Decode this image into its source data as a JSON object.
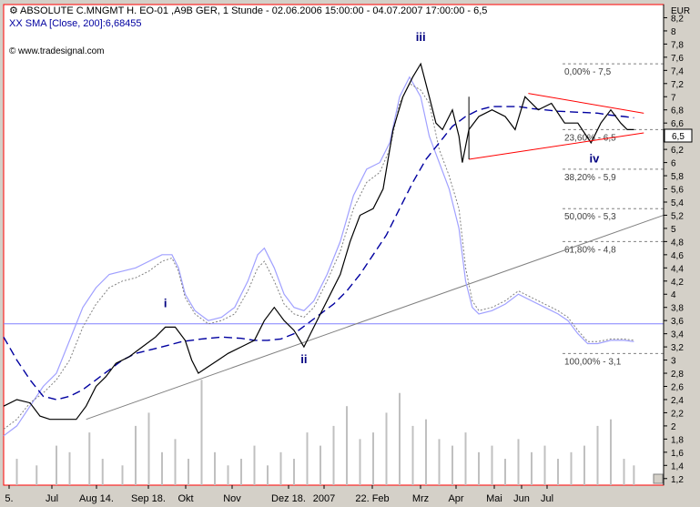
{
  "header": {
    "title": "ABSOLUTE C.MNGMT H. EO-01 ,A9B GER, 1 Stunde - 02.06.2006 15:00:00 - 04.07.2007 17:00:00 - 6,5",
    "sma_label": "XX SMA [Close, 200]:6,68455",
    "watermark": "www.tradesignal.com",
    "currency": "EUR",
    "last_price_tag": "6,5"
  },
  "colors": {
    "background": "#ffffff",
    "frame": "#ff0000",
    "price": "#000000",
    "sma": "#0000a0",
    "envelope": "#a0a0ff",
    "dotted": "#808080",
    "triangle": "#ff0000",
    "trendline": "#808080",
    "hline": "#8080ff",
    "fib": "#808080",
    "wave_label": "#000080",
    "volume": "#c0c0c0"
  },
  "chart_data": {
    "type": "line",
    "y_axis": {
      "min": 1.1,
      "max": 8.4,
      "ticks": [
        "8,2",
        "8",
        "7,8",
        "7,6",
        "7,4",
        "7,2",
        "7",
        "6,8",
        "6,6",
        "6,4",
        "6,2",
        "6",
        "5,8",
        "5,6",
        "5,4",
        "5,2",
        "5",
        "4,8",
        "4,6",
        "4,4",
        "4,2",
        "4",
        "3,8",
        "3,6",
        "3,4",
        "3,2",
        "3",
        "2,8",
        "2,6",
        "2,4",
        "2,2",
        "2",
        "1,8",
        "1,6",
        "1,4",
        "1,2"
      ]
    },
    "x_axis": {
      "labels": [
        "5.",
        "Jul",
        "Aug 14.",
        "Sep 18.",
        "Okt",
        "Nov",
        "Dez 18.",
        "2007",
        "22. Feb",
        "Mrz",
        "Apr",
        "Mai",
        "Jun",
        "Jul"
      ]
    },
    "fibonacci": [
      {
        "label": "0,00% - 7,5",
        "value": 7.5
      },
      {
        "label": "23,60% - 6,5",
        "value": 6.5
      },
      {
        "label": "38,20% - 5,9",
        "value": 5.9
      },
      {
        "label": "50,00% - 5,3",
        "value": 5.3
      },
      {
        "label": "61,80% - 4,8",
        "value": 4.8
      },
      {
        "label": "100,00% - 3,1",
        "value": 3.1
      }
    ],
    "wave_labels": [
      {
        "label": "i",
        "t": 0.245,
        "y": 3.8
      },
      {
        "label": "ii",
        "t": 0.455,
        "y": 2.95
      },
      {
        "label": "iii",
        "t": 0.632,
        "y": 7.85
      },
      {
        "label": "iv",
        "t": 0.895,
        "y": 6.0
      }
    ],
    "price_series": [
      [
        0,
        2.3
      ],
      [
        0.02,
        2.4
      ],
      [
        0.04,
        2.35
      ],
      [
        0.055,
        2.15
      ],
      [
        0.07,
        2.1
      ],
      [
        0.09,
        2.1
      ],
      [
        0.11,
        2.1
      ],
      [
        0.125,
        2.3
      ],
      [
        0.14,
        2.6
      ],
      [
        0.155,
        2.75
      ],
      [
        0.17,
        2.95
      ],
      [
        0.19,
        3.05
      ],
      [
        0.21,
        3.2
      ],
      [
        0.23,
        3.35
      ],
      [
        0.245,
        3.5
      ],
      [
        0.26,
        3.5
      ],
      [
        0.275,
        3.3
      ],
      [
        0.285,
        3.0
      ],
      [
        0.295,
        2.8
      ],
      [
        0.31,
        2.9
      ],
      [
        0.325,
        3.0
      ],
      [
        0.34,
        3.1
      ],
      [
        0.36,
        3.2
      ],
      [
        0.38,
        3.3
      ],
      [
        0.395,
        3.6
      ],
      [
        0.41,
        3.8
      ],
      [
        0.425,
        3.6
      ],
      [
        0.44,
        3.45
      ],
      [
        0.455,
        3.2
      ],
      [
        0.465,
        3.4
      ],
      [
        0.48,
        3.7
      ],
      [
        0.495,
        4.0
      ],
      [
        0.51,
        4.3
      ],
      [
        0.525,
        4.8
      ],
      [
        0.54,
        5.2
      ],
      [
        0.56,
        5.3
      ],
      [
        0.575,
        5.6
      ],
      [
        0.59,
        6.5
      ],
      [
        0.605,
        7.0
      ],
      [
        0.62,
        7.3
      ],
      [
        0.632,
        7.5
      ],
      [
        0.645,
        7.0
      ],
      [
        0.655,
        6.6
      ],
      [
        0.665,
        6.5
      ],
      [
        0.68,
        6.8
      ],
      [
        0.69,
        6.4
      ],
      [
        0.695,
        6.0
      ],
      [
        0.705,
        6.5
      ],
      [
        0.72,
        6.7
      ],
      [
        0.74,
        6.8
      ],
      [
        0.76,
        6.7
      ],
      [
        0.775,
        6.5
      ],
      [
        0.79,
        7.0
      ],
      [
        0.81,
        6.8
      ],
      [
        0.83,
        6.9
      ],
      [
        0.85,
        6.6
      ],
      [
        0.87,
        6.6
      ],
      [
        0.89,
        6.3
      ],
      [
        0.905,
        6.6
      ],
      [
        0.92,
        6.8
      ],
      [
        0.935,
        6.6
      ],
      [
        0.945,
        6.5
      ],
      [
        0.955,
        6.5
      ]
    ],
    "sma_series": [
      [
        0,
        3.35
      ],
      [
        0.02,
        3.0
      ],
      [
        0.04,
        2.7
      ],
      [
        0.06,
        2.45
      ],
      [
        0.08,
        2.4
      ],
      [
        0.1,
        2.45
      ],
      [
        0.12,
        2.55
      ],
      [
        0.14,
        2.7
      ],
      [
        0.16,
        2.85
      ],
      [
        0.18,
        3.0
      ],
      [
        0.2,
        3.1
      ],
      [
        0.22,
        3.15
      ],
      [
        0.24,
        3.2
      ],
      [
        0.27,
        3.28
      ],
      [
        0.3,
        3.32
      ],
      [
        0.33,
        3.35
      ],
      [
        0.36,
        3.33
      ],
      [
        0.38,
        3.3
      ],
      [
        0.4,
        3.3
      ],
      [
        0.42,
        3.32
      ],
      [
        0.44,
        3.4
      ],
      [
        0.46,
        3.55
      ],
      [
        0.48,
        3.7
      ],
      [
        0.5,
        3.85
      ],
      [
        0.52,
        4.05
      ],
      [
        0.54,
        4.3
      ],
      [
        0.56,
        4.6
      ],
      [
        0.58,
        4.9
      ],
      [
        0.6,
        5.3
      ],
      [
        0.62,
        5.7
      ],
      [
        0.64,
        6.05
      ],
      [
        0.66,
        6.3
      ],
      [
        0.68,
        6.55
      ],
      [
        0.7,
        6.7
      ],
      [
        0.72,
        6.8
      ],
      [
        0.74,
        6.85
      ],
      [
        0.76,
        6.85
      ],
      [
        0.78,
        6.85
      ],
      [
        0.8,
        6.82
      ],
      [
        0.82,
        6.8
      ],
      [
        0.84,
        6.78
      ],
      [
        0.86,
        6.77
      ],
      [
        0.88,
        6.76
      ],
      [
        0.9,
        6.75
      ],
      [
        0.92,
        6.72
      ],
      [
        0.94,
        6.7
      ],
      [
        0.955,
        6.68
      ]
    ],
    "envelope_series": [
      [
        0,
        1.85
      ],
      [
        0.02,
        2.0
      ],
      [
        0.04,
        2.3
      ],
      [
        0.06,
        2.6
      ],
      [
        0.08,
        2.8
      ],
      [
        0.1,
        3.3
      ],
      [
        0.12,
        3.8
      ],
      [
        0.14,
        4.1
      ],
      [
        0.16,
        4.3
      ],
      [
        0.18,
        4.35
      ],
      [
        0.2,
        4.4
      ],
      [
        0.22,
        4.5
      ],
      [
        0.24,
        4.6
      ],
      [
        0.255,
        4.6
      ],
      [
        0.265,
        4.4
      ],
      [
        0.275,
        4.0
      ],
      [
        0.29,
        3.75
      ],
      [
        0.31,
        3.6
      ],
      [
        0.33,
        3.65
      ],
      [
        0.35,
        3.8
      ],
      [
        0.37,
        4.2
      ],
      [
        0.385,
        4.6
      ],
      [
        0.395,
        4.7
      ],
      [
        0.41,
        4.4
      ],
      [
        0.425,
        4.0
      ],
      [
        0.44,
        3.8
      ],
      [
        0.455,
        3.75
      ],
      [
        0.47,
        3.9
      ],
      [
        0.49,
        4.3
      ],
      [
        0.51,
        4.8
      ],
      [
        0.53,
        5.5
      ],
      [
        0.55,
        5.9
      ],
      [
        0.57,
        6.0
      ],
      [
        0.585,
        6.3
      ],
      [
        0.6,
        7.0
      ],
      [
        0.615,
        7.3
      ],
      [
        0.632,
        7.0
      ],
      [
        0.645,
        6.4
      ],
      [
        0.66,
        6.0
      ],
      [
        0.675,
        5.6
      ],
      [
        0.69,
        5.0
      ],
      [
        0.7,
        4.2
      ],
      [
        0.71,
        3.8
      ],
      [
        0.72,
        3.7
      ],
      [
        0.74,
        3.75
      ],
      [
        0.76,
        3.85
      ],
      [
        0.78,
        4.0
      ],
      [
        0.8,
        3.9
      ],
      [
        0.82,
        3.8
      ],
      [
        0.84,
        3.7
      ],
      [
        0.855,
        3.6
      ],
      [
        0.87,
        3.4
      ],
      [
        0.885,
        3.25
      ],
      [
        0.9,
        3.25
      ],
      [
        0.92,
        3.3
      ],
      [
        0.94,
        3.3
      ],
      [
        0.955,
        3.28
      ]
    ],
    "dotted_series": [
      [
        0,
        1.95
      ],
      [
        0.02,
        2.1
      ],
      [
        0.04,
        2.35
      ],
      [
        0.06,
        2.5
      ],
      [
        0.08,
        2.7
      ],
      [
        0.1,
        3.0
      ],
      [
        0.12,
        3.5
      ],
      [
        0.14,
        3.85
      ],
      [
        0.16,
        4.1
      ],
      [
        0.18,
        4.2
      ],
      [
        0.2,
        4.25
      ],
      [
        0.22,
        4.35
      ],
      [
        0.24,
        4.5
      ],
      [
        0.255,
        4.55
      ],
      [
        0.265,
        4.35
      ],
      [
        0.275,
        3.95
      ],
      [
        0.29,
        3.7
      ],
      [
        0.31,
        3.55
      ],
      [
        0.33,
        3.6
      ],
      [
        0.35,
        3.7
      ],
      [
        0.37,
        4.05
      ],
      [
        0.385,
        4.4
      ],
      [
        0.395,
        4.5
      ],
      [
        0.41,
        4.2
      ],
      [
        0.425,
        3.85
      ],
      [
        0.44,
        3.7
      ],
      [
        0.455,
        3.65
      ],
      [
        0.47,
        3.8
      ],
      [
        0.49,
        4.2
      ],
      [
        0.51,
        4.65
      ],
      [
        0.53,
        5.3
      ],
      [
        0.55,
        5.7
      ],
      [
        0.57,
        5.85
      ],
      [
        0.585,
        6.2
      ],
      [
        0.6,
        6.9
      ],
      [
        0.615,
        7.2
      ],
      [
        0.632,
        7.1
      ],
      [
        0.645,
        6.9
      ],
      [
        0.66,
        6.2
      ],
      [
        0.675,
        5.8
      ],
      [
        0.69,
        5.3
      ],
      [
        0.7,
        4.4
      ],
      [
        0.71,
        3.9
      ],
      [
        0.72,
        3.75
      ],
      [
        0.74,
        3.8
      ],
      [
        0.76,
        3.9
      ],
      [
        0.78,
        4.05
      ],
      [
        0.8,
        3.95
      ],
      [
        0.82,
        3.85
      ],
      [
        0.84,
        3.75
      ],
      [
        0.855,
        3.65
      ],
      [
        0.87,
        3.45
      ],
      [
        0.885,
        3.28
      ],
      [
        0.9,
        3.28
      ],
      [
        0.92,
        3.32
      ],
      [
        0.94,
        3.32
      ],
      [
        0.955,
        3.3
      ]
    ],
    "triangle": {
      "upper": [
        [
          0.795,
          7.05
        ],
        [
          0.97,
          6.75
        ]
      ],
      "lower": [
        [
          0.705,
          6.05
        ],
        [
          0.97,
          6.45
        ]
      ]
    },
    "trendline": [
      [
        0.125,
        2.1
      ],
      [
        1.0,
        5.2
      ]
    ],
    "horizontal_line": 3.55,
    "volume_series": [
      [
        0.02,
        0.4
      ],
      [
        0.05,
        0.3
      ],
      [
        0.08,
        0.6
      ],
      [
        0.1,
        0.5
      ],
      [
        0.13,
        0.8
      ],
      [
        0.15,
        0.4
      ],
      [
        0.18,
        0.3
      ],
      [
        0.2,
        0.9
      ],
      [
        0.22,
        1.1
      ],
      [
        0.24,
        0.5
      ],
      [
        0.26,
        0.7
      ],
      [
        0.28,
        0.4
      ],
      [
        0.3,
        1.6
      ],
      [
        0.32,
        0.5
      ],
      [
        0.34,
        0.3
      ],
      [
        0.36,
        0.4
      ],
      [
        0.38,
        0.6
      ],
      [
        0.4,
        0.3
      ],
      [
        0.42,
        0.5
      ],
      [
        0.44,
        0.4
      ],
      [
        0.46,
        0.8
      ],
      [
        0.48,
        0.6
      ],
      [
        0.5,
        0.9
      ],
      [
        0.52,
        1.2
      ],
      [
        0.54,
        0.7
      ],
      [
        0.56,
        0.8
      ],
      [
        0.58,
        1.1
      ],
      [
        0.6,
        1.4
      ],
      [
        0.62,
        0.9
      ],
      [
        0.64,
        1.0
      ],
      [
        0.66,
        0.7
      ],
      [
        0.68,
        0.6
      ],
      [
        0.7,
        0.8
      ],
      [
        0.72,
        0.5
      ],
      [
        0.74,
        0.6
      ],
      [
        0.76,
        0.4
      ],
      [
        0.78,
        0.7
      ],
      [
        0.8,
        0.5
      ],
      [
        0.82,
        0.6
      ],
      [
        0.84,
        0.4
      ],
      [
        0.86,
        0.5
      ],
      [
        0.88,
        0.6
      ],
      [
        0.9,
        0.9
      ],
      [
        0.92,
        1.0
      ],
      [
        0.94,
        0.4
      ],
      [
        0.955,
        0.3
      ]
    ]
  }
}
